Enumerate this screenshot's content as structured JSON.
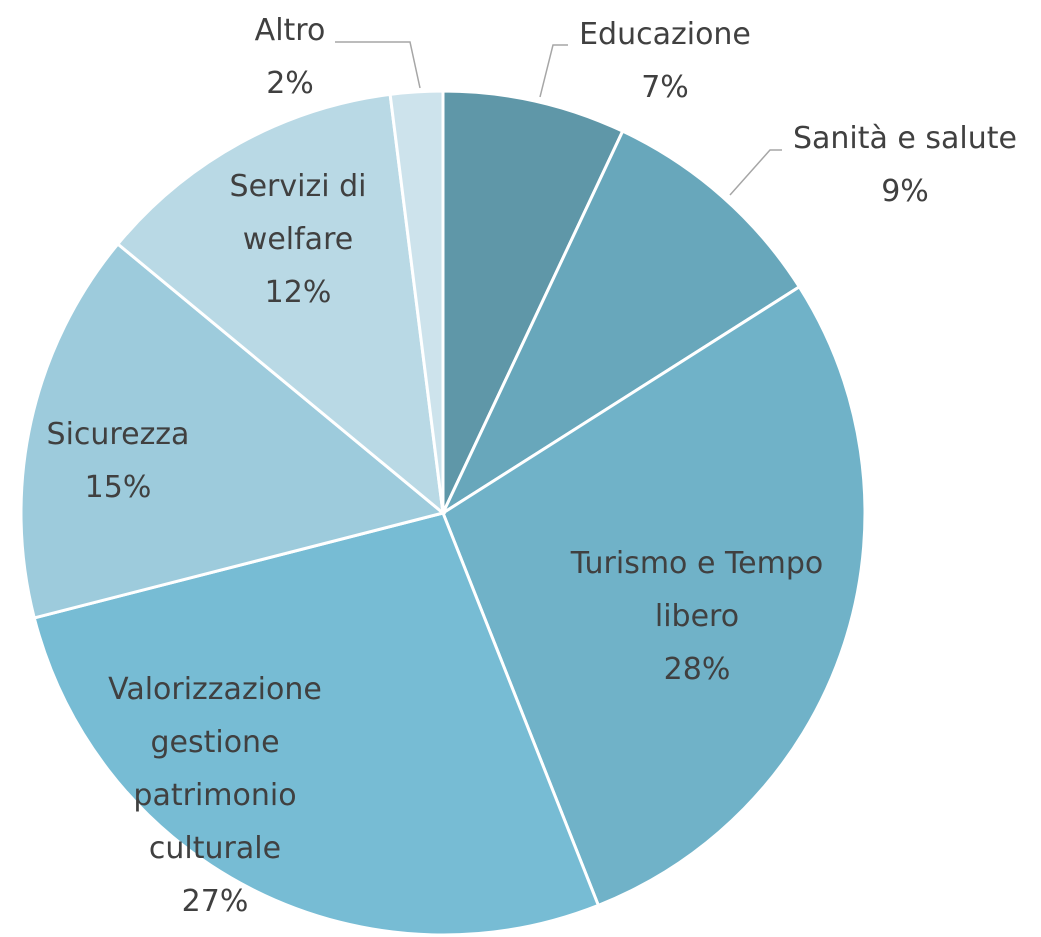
{
  "chart_data": {
    "type": "pie",
    "categories": [
      "Educazione",
      "Sanità e salute",
      "Turismo e Tempo libero",
      "Valorizzazione gestione patrimonio culturale",
      "Sicurezza",
      "Servizi di welfare",
      "Altro"
    ],
    "values": [
      7,
      9,
      28,
      27,
      15,
      12,
      2
    ],
    "value_labels": [
      "7%",
      "9%",
      "28%",
      "27%",
      "15%",
      "12%",
      "2%"
    ],
    "colors": [
      "#5f97a8",
      "#68a7bb",
      "#70b2c8",
      "#77bcd4",
      "#9dcbdc",
      "#b9d9e5",
      "#cde3ec"
    ]
  }
}
